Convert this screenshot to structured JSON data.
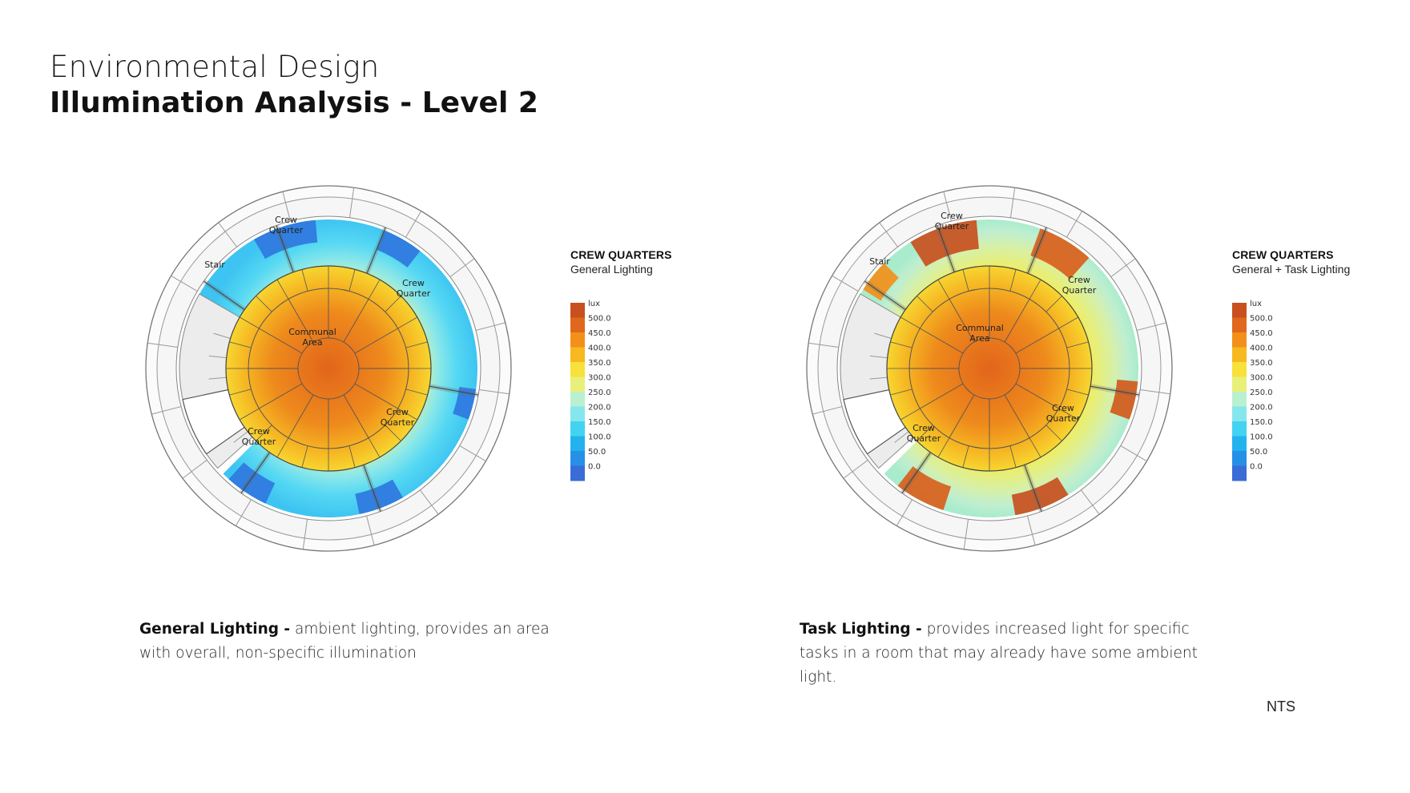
{
  "header": {
    "title": "Environmental Design",
    "subtitle": "Illumination Analysis - Level 2"
  },
  "scale": {
    "unit": "lux",
    "ticks": [
      "500.0",
      "450.0",
      "400.0",
      "350.0",
      "300.0",
      "250.0",
      "200.0",
      "150.0",
      "100.0",
      "50.0",
      "0.0"
    ],
    "colors": [
      "#c8501e",
      "#e0681c",
      "#f2901a",
      "#f8b81f",
      "#f7e13a",
      "#e8f07a",
      "#b9f0d0",
      "#86e6ee",
      "#43d3f1",
      "#22b3ef",
      "#2690e6",
      "#3a6cd6"
    ]
  },
  "plans": [
    {
      "legend_title": "CREW QUARTERS",
      "legend_sub": "General Lighting",
      "mode": "general",
      "labels": {
        "cq_top": [
          "Crew",
          "Quarter"
        ],
        "cq_right": [
          "Crew",
          "Quarter"
        ],
        "cq_br": [
          "Crew",
          "Quarter"
        ],
        "cq_bl": [
          "Crew",
          "Quarter"
        ],
        "stair": "Stair",
        "communal": [
          "Communal",
          "Area"
        ]
      }
    },
    {
      "legend_title": "CREW QUARTERS",
      "legend_sub": "General + Task Lighting",
      "mode": "task",
      "labels": {
        "cq_top": [
          "Crew",
          "Quarter"
        ],
        "cq_right": [
          "Crew",
          "Quarter"
        ],
        "cq_br": [
          "Crew",
          "Quarter"
        ],
        "cq_bl": [
          "Crew",
          "Quarter"
        ],
        "stair": "Stair",
        "communal": [
          "Communal",
          "Area"
        ]
      }
    }
  ],
  "captions": [
    {
      "bold": "General Lighting -",
      "text": " ambient lighting, provides an area with overall, non-specific illumination"
    },
    {
      "bold": "Task Lighting -",
      "text": " provides increased light for specific tasks in a room that may already have some ambient light."
    }
  ],
  "note": "NTS"
}
